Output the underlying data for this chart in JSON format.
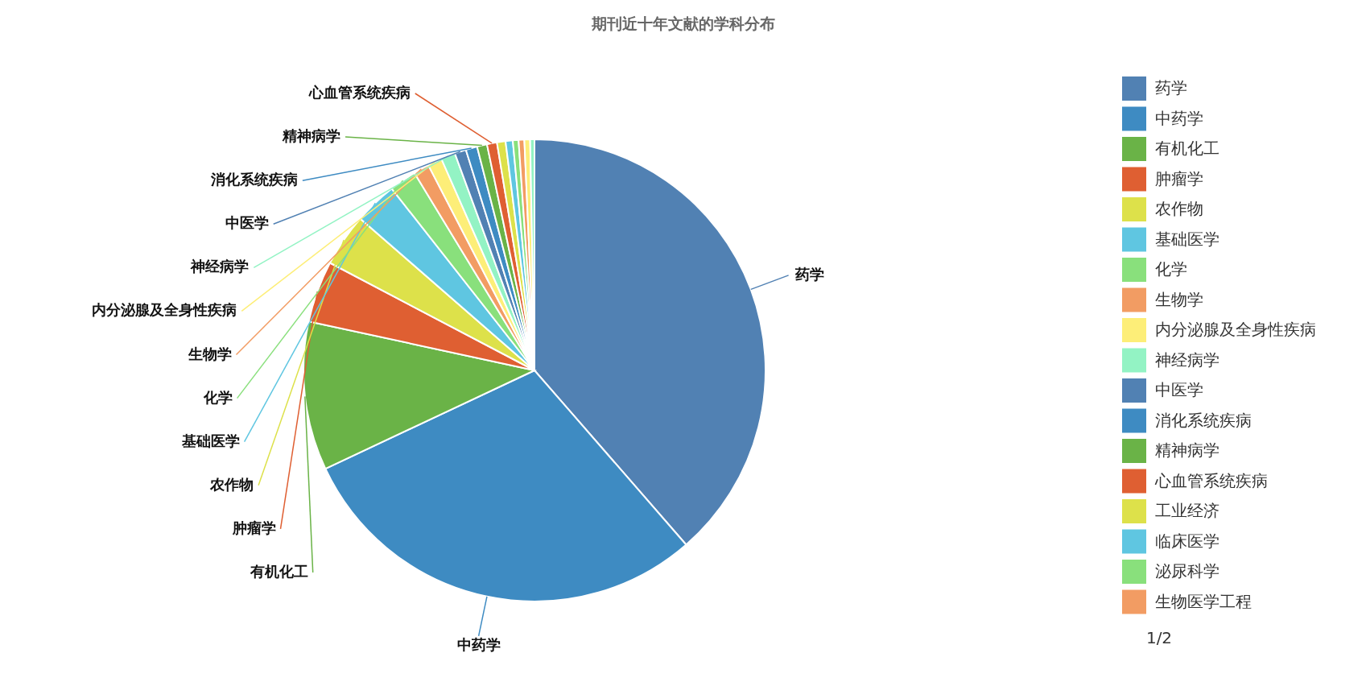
{
  "chart_data": {
    "type": "pie",
    "title": "期刊近十年文献的学科分布",
    "categories": [
      "药学",
      "中药学",
      "有机化工",
      "肿瘤学",
      "农作物",
      "基础医学",
      "化学",
      "生物学",
      "内分泌腺及全身性疾病",
      "神经病学",
      "中医学",
      "消化系统疾病",
      "精神病学",
      "心血管系统疾病",
      "工业经济",
      "临床医学",
      "泌尿科学",
      "生物医学工程",
      null,
      null
    ],
    "values": [
      38.6,
      29.4,
      10.4,
      4.3,
      3.7,
      3.0,
      1.9,
      1.1,
      1.0,
      1.0,
      0.8,
      0.8,
      0.7,
      0.7,
      0.6,
      0.5,
      0.4,
      0.4,
      0.4,
      0.3
    ],
    "colors": [
      "#5181b3",
      "#3e8bc2",
      "#6ab347",
      "#df5f32",
      "#dde14a",
      "#5fc6e1",
      "#89e07c",
      "#f29c63",
      "#fdee78",
      "#93f3c4",
      "#5181b3",
      "#3e8bc2",
      "#6ab347",
      "#df5f32",
      "#dde14a",
      "#5fc6e1",
      "#89e07c",
      "#f29c63",
      "#fdee78",
      "#93f3c4"
    ],
    "legend": "right",
    "annotations": [
      "1/2"
    ]
  }
}
